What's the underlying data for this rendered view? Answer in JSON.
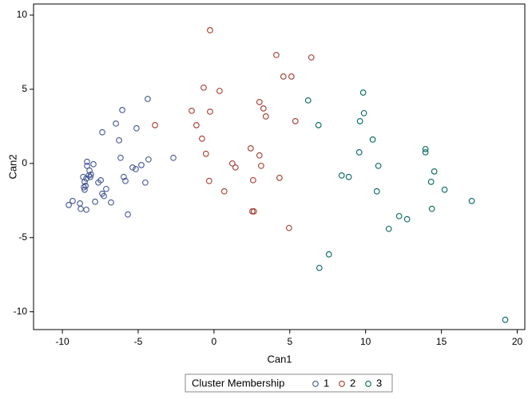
{
  "chart_data": {
    "type": "scatter",
    "x_label": "Can1",
    "y_label": "Can2",
    "legend_title": "Cluster Membership",
    "xlim": [
      -11.9,
      20.5
    ],
    "ylim": [
      -11.2,
      10.75
    ],
    "xticks": [
      -10,
      -5,
      0,
      5,
      10,
      15,
      20
    ],
    "yticks": [
      -10,
      -5,
      0,
      5,
      10
    ],
    "series": [
      {
        "name": "1",
        "color": "#445694",
        "x": [
          -9.58,
          -9.32,
          -8.84,
          -8.79,
          -8.42,
          -8.63,
          -8.53,
          -8.47,
          -8.58,
          -8.53,
          -8.37,
          -8.37,
          -8.21,
          -8.11,
          -7.95,
          -8.26,
          -8.16,
          -8.42,
          -7.84,
          -7.63,
          -7.47,
          -7.37,
          -7.26,
          -7.11,
          -6.79,
          -7.37,
          -6.47,
          -6.26,
          -6.16,
          -5.95,
          -6.05,
          -5.84,
          -5.68,
          -5.37,
          -5.11,
          -5.16,
          -4.79,
          -4.53,
          -4.37,
          -4.32,
          -2.68
        ],
        "values": [
          -2.8,
          -2.53,
          -2.69,
          -3.06,
          -3.12,
          -0.91,
          -1.24,
          -1.51,
          -1.61,
          -1.77,
          0.11,
          -0.16,
          -0.48,
          -0.75,
          -0.05,
          -0.81,
          -0.91,
          -1.02,
          -2.58,
          -1.29,
          -1.13,
          -2.04,
          -2.2,
          -1.72,
          -2.63,
          2.1,
          2.69,
          1.56,
          0.38,
          -0.91,
          3.6,
          -1.18,
          -3.44,
          -0.27,
          2.37,
          -0.38,
          -0.11,
          -1.29,
          4.35,
          0.27,
          0.38
        ]
      },
      {
        "name": "2",
        "color": "#a23a2e",
        "x": [
          -0.26,
          4.11,
          6.42,
          4.58,
          5.11,
          -0.68,
          0.37,
          3.0,
          3.26,
          3.42,
          -1.47,
          -0.26,
          5.37,
          -3.89,
          -1.16,
          -0.79,
          -0.53,
          2.42,
          3.0,
          1.21,
          1.42,
          3.11,
          -0.32,
          0.68,
          2.58,
          4.32,
          2.53,
          2.63,
          4.95
        ],
        "values": [
          8.98,
          7.31,
          7.15,
          5.86,
          5.86,
          5.11,
          4.89,
          4.14,
          3.71,
          3.17,
          3.55,
          3.49,
          2.85,
          2.58,
          2.58,
          1.67,
          0.65,
          1.02,
          0.54,
          0.0,
          -0.27,
          -0.16,
          -1.18,
          -1.88,
          -1.13,
          -0.97,
          -3.23,
          -3.23,
          -4.35
        ]
      },
      {
        "name": "3",
        "color": "#01665e",
        "x": [
          9.84,
          6.21,
          9.89,
          9.63,
          6.89,
          10.47,
          9.58,
          13.95,
          13.95,
          10.84,
          8.42,
          8.89,
          14.53,
          14.32,
          10.74,
          15.21,
          17.0,
          12.21,
          12.74,
          14.37,
          11.53,
          7.58,
          6.95,
          19.21
        ],
        "values": [
          4.78,
          4.25,
          3.39,
          2.85,
          2.58,
          1.61,
          0.75,
          0.97,
          0.75,
          -0.16,
          -0.81,
          -0.91,
          -0.54,
          -1.24,
          -1.88,
          -1.77,
          -2.53,
          -3.55,
          -3.76,
          -3.06,
          -4.41,
          -6.13,
          -7.04,
          -10.54
        ]
      }
    ]
  }
}
